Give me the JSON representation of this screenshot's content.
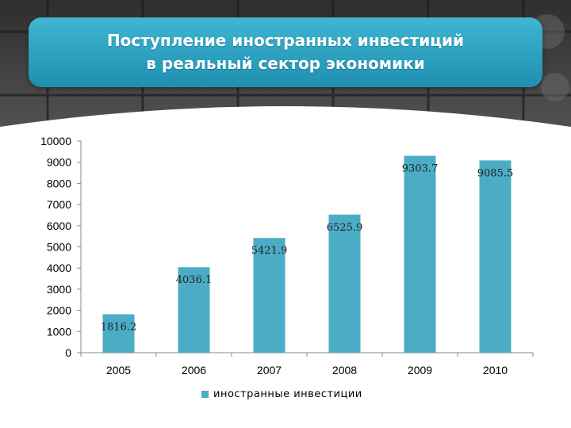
{
  "title": {
    "line1": "Поступление иностранных инвестиций",
    "line2": "в реальный сектор экономики"
  },
  "colors": {
    "bar": "#4bacc6",
    "title_bg": "#2aa3c5",
    "header_bg": "#3a3a3a"
  },
  "chart_data": {
    "type": "bar",
    "categories": [
      "2005",
      "2006",
      "2007",
      "2008",
      "2009",
      "2010"
    ],
    "series": [
      {
        "name": "иностранные инвестиции",
        "values": [
          1816.2,
          4036.1,
          5421.9,
          6525.9,
          9303.7,
          9085.5
        ]
      }
    ],
    "data_labels": [
      "1816.2",
      "4036.1",
      "5421.9",
      "6525.9",
      "9303.7",
      "9085.5"
    ],
    "ylim": [
      0,
      10000
    ],
    "yticks": [
      0,
      1000,
      2000,
      3000,
      4000,
      5000,
      6000,
      7000,
      8000,
      9000,
      10000
    ],
    "grid": false,
    "legend_position": "bottom",
    "legend": "иностранные инвестиции"
  }
}
